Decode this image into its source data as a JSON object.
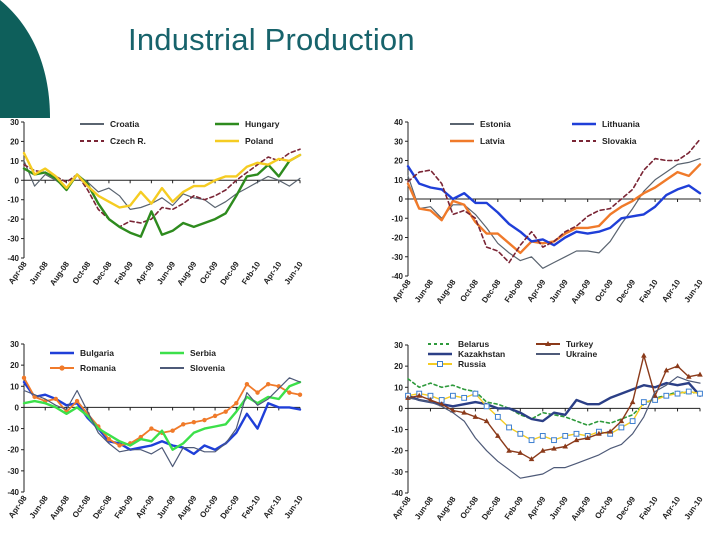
{
  "page": {
    "title": "Industrial Production"
  },
  "colors": {
    "title": "#17636b",
    "corner": "#0e5f5b"
  },
  "chart_data": [
    {
      "type": "line",
      "months": [
        "Apr-08",
        "May-08",
        "Jun-08",
        "Jul-08",
        "Aug-08",
        "Sep-08",
        "Oct-08",
        "Nov-08",
        "Dec-08",
        "Jan-09",
        "Feb-09",
        "Mar-09",
        "Apr-09",
        "May-09",
        "Jun-09",
        "Jul-09",
        "Aug-09",
        "Sep-09",
        "Oct-09",
        "Nov-09",
        "Dec-09",
        "Jan-10",
        "Feb-10",
        "Mar-10",
        "Apr-10",
        "May-10",
        "Jun-10"
      ],
      "tick_labels": [
        "Apr-08",
        "Jun-08",
        "Aug-08",
        "Oct-08",
        "Dec-08",
        "Feb-09",
        "Apr-09",
        "Jun-09",
        "Aug-09",
        "Oct-09",
        "Dec-09",
        "Feb-10",
        "Apr-10",
        "Jun-10"
      ],
      "ylim": [
        -40,
        30
      ],
      "yticks": [
        30,
        20,
        10,
        0,
        -10,
        -20,
        -30,
        -40
      ],
      "series": [
        {
          "name": "Croatia",
          "color": "#5a6470",
          "width": 1.2,
          "dash": "",
          "marker": "",
          "values": [
            10,
            -3,
            3,
            0,
            -4,
            3,
            -1,
            -6,
            -4,
            -8,
            -15,
            -14,
            -12,
            -9,
            -13,
            -7,
            -9,
            -10,
            -14,
            -11,
            -7,
            -4,
            -1,
            2,
            0,
            -3,
            1
          ]
        },
        {
          "name": "Czech R.",
          "color": "#7a2535",
          "width": 1.6,
          "dash": "4 3",
          "marker": "",
          "values": [
            8,
            5,
            4,
            2,
            -1,
            3,
            -5,
            -15,
            -20,
            -24,
            -21,
            -22,
            -20,
            -14,
            -15,
            -12,
            -8,
            -10,
            -8,
            -5,
            0,
            4,
            8,
            12,
            10,
            14,
            16
          ]
        },
        {
          "name": "Hungary",
          "color": "#2e8b1e",
          "width": 2.4,
          "dash": "",
          "marker": "",
          "values": [
            6,
            3,
            4,
            1,
            -5,
            3,
            -2,
            -12,
            -20,
            -24,
            -27,
            -29,
            -16,
            -28,
            -26,
            -22,
            -24,
            -22,
            -20,
            -17,
            -8,
            2,
            3,
            8,
            2,
            10,
            13
          ]
        },
        {
          "name": "Poland",
          "color": "#f5cc22",
          "width": 2.4,
          "dash": "",
          "marker": "",
          "values": [
            14,
            3,
            6,
            2,
            -4,
            3,
            -3,
            -8,
            -11,
            -14,
            -13,
            -6,
            -12,
            -4,
            -11,
            -6,
            -3,
            -3,
            0,
            2,
            2,
            7,
            9,
            8,
            11,
            10,
            13
          ]
        }
      ]
    },
    {
      "type": "line",
      "months": [
        "Apr-08",
        "May-08",
        "Jun-08",
        "Jul-08",
        "Aug-08",
        "Sep-08",
        "Oct-08",
        "Nov-08",
        "Dec-08",
        "Jan-09",
        "Feb-09",
        "Mar-09",
        "Apr-09",
        "May-09",
        "Jun-09",
        "Jul-09",
        "Aug-09",
        "Sep-09",
        "Oct-09",
        "Nov-09",
        "Dec-09",
        "Jan-10",
        "Feb-10",
        "Mar-10",
        "Apr-10",
        "May-10",
        "Jun-10"
      ],
      "tick_labels": [
        "Apr-08",
        "Jun-08",
        "Aug-08",
        "Oct-08",
        "Dec-08",
        "Feb-09",
        "Apr-09",
        "Jun-09",
        "Aug-09",
        "Oct-09",
        "Dec-09",
        "Feb-10",
        "Apr-10",
        "Jun-10"
      ],
      "ylim": [
        -40,
        40
      ],
      "yticks": [
        40,
        30,
        20,
        10,
        0,
        -10,
        -20,
        -30,
        -40
      ],
      "series": [
        {
          "name": "Estonia",
          "color": "#5a6470",
          "width": 1.2,
          "dash": "",
          "marker": "",
          "values": [
            12,
            -5,
            -4,
            -10,
            -3,
            -3,
            -8,
            -15,
            -23,
            -28,
            -32,
            -30,
            -36,
            -33,
            -30,
            -27,
            -27,
            -28,
            -22,
            -13,
            -5,
            4,
            10,
            14,
            18,
            19,
            21
          ]
        },
        {
          "name": "Latvia",
          "color": "#f07a2a",
          "width": 2.4,
          "dash": "",
          "marker": "",
          "values": [
            8,
            -5,
            -6,
            -11,
            -1,
            -3,
            -12,
            -18,
            -18,
            -23,
            -28,
            -22,
            -23,
            -22,
            -18,
            -15,
            -15,
            -14,
            -8,
            -4,
            -1,
            3,
            6,
            10,
            14,
            12,
            18
          ]
        },
        {
          "name": "Lithuania",
          "color": "#1f3fd8",
          "width": 2.4,
          "dash": "",
          "marker": "",
          "values": [
            17,
            8,
            6,
            5,
            0,
            3,
            -2,
            -2,
            -7,
            -13,
            -17,
            -22,
            -21,
            -24,
            -20,
            -17,
            -18,
            -17,
            -15,
            -10,
            -9,
            -8,
            -4,
            2,
            5,
            7,
            3
          ]
        },
        {
          "name": "Slovakia",
          "color": "#7a2535",
          "width": 1.6,
          "dash": "4 3",
          "marker": "",
          "values": [
            9,
            14,
            15,
            8,
            -8,
            -6,
            -10,
            -25,
            -27,
            -33,
            -24,
            -17,
            -25,
            -22,
            -17,
            -14,
            -9,
            -6,
            -5,
            0,
            5,
            15,
            21,
            20,
            20,
            24,
            31
          ]
        }
      ]
    },
    {
      "type": "line",
      "months": [
        "Apr-08",
        "May-08",
        "Jun-08",
        "Jul-08",
        "Aug-08",
        "Sep-08",
        "Oct-08",
        "Nov-08",
        "Dec-08",
        "Jan-09",
        "Feb-09",
        "Mar-09",
        "Apr-09",
        "May-09",
        "Jun-09",
        "Jul-09",
        "Aug-09",
        "Sep-09",
        "Oct-09",
        "Nov-09",
        "Dec-09",
        "Jan-10",
        "Feb-10",
        "Mar-10",
        "Apr-10",
        "May-10",
        "Jun-10"
      ],
      "tick_labels": [
        "Apr-08",
        "Jun-08",
        "Aug-08",
        "Oct-08",
        "Dec-08",
        "Feb-09",
        "Apr-09",
        "Jun-09",
        "Aug-09",
        "Oct-09",
        "Dec-09",
        "Feb-10",
        "Apr-10",
        "Jun-10"
      ],
      "ylim": [
        -40,
        30
      ],
      "yticks": [
        30,
        20,
        10,
        0,
        -10,
        -20,
        -30,
        -40
      ],
      "series": [
        {
          "name": "Bulgaria",
          "color": "#1f3fd8",
          "width": 2.4,
          "dash": "",
          "marker": "",
          "values": [
            12,
            5,
            6,
            4,
            1,
            2,
            -5,
            -10,
            -16,
            -17,
            -20,
            -19,
            -18,
            -16,
            -18,
            -19,
            -22,
            -18,
            -20,
            -17,
            -12,
            -3,
            -10,
            2,
            0,
            0,
            -1
          ]
        },
        {
          "name": "Romania",
          "color": "#f07a2a",
          "width": 1.8,
          "dash": "",
          "marker": "dot",
          "values": [
            14,
            5,
            3,
            4,
            -2,
            3,
            -3,
            -9,
            -15,
            -18,
            -17,
            -14,
            -10,
            -12,
            -11,
            -8,
            -7,
            -6,
            -4,
            -2,
            2,
            11,
            7,
            11,
            10,
            7,
            6
          ]
        },
        {
          "name": "Serbia",
          "color": "#3ce04a",
          "width": 2.4,
          "dash": "",
          "marker": "",
          "values": [
            2,
            3,
            2,
            0,
            -3,
            0,
            -4,
            -10,
            -13,
            -16,
            -18,
            -15,
            -16,
            -11,
            -20,
            -17,
            -12,
            -10,
            -9,
            -8,
            -2,
            5,
            2,
            5,
            4,
            10,
            12
          ]
        },
        {
          "name": "Slovenia",
          "color": "#4e5a78",
          "width": 1.2,
          "dash": "",
          "marker": "",
          "values": [
            8,
            6,
            4,
            1,
            -1,
            8,
            -2,
            -12,
            -17,
            -21,
            -20,
            -20,
            -22,
            -19,
            -28,
            -19,
            -19,
            -21,
            -21,
            -17,
            -10,
            7,
            1,
            4,
            9,
            14,
            12
          ]
        }
      ]
    },
    {
      "type": "line",
      "months": [
        "Apr-08",
        "May-08",
        "Jun-08",
        "Jul-08",
        "Aug-08",
        "Sep-08",
        "Oct-08",
        "Nov-08",
        "Dec-08",
        "Jan-09",
        "Feb-09",
        "Mar-09",
        "Apr-09",
        "May-09",
        "Jun-09",
        "Jul-09",
        "Aug-09",
        "Sep-09",
        "Oct-09",
        "Nov-09",
        "Dec-09",
        "Jan-10",
        "Feb-10",
        "Mar-10",
        "Apr-10",
        "May-10",
        "Jun-10"
      ],
      "tick_labels": [
        "Apr-08",
        "Jun-08",
        "Aug-08",
        "Oct-08",
        "Dec-08",
        "Feb-09",
        "Apr-09",
        "Jun-09",
        "Aug-09",
        "Oct-09",
        "Dec-09",
        "Feb-10",
        "Apr-10",
        "Jun-10"
      ],
      "ylim": [
        -40,
        30
      ],
      "yticks": [
        30,
        20,
        10,
        0,
        -10,
        -20,
        -30,
        -40
      ],
      "series": [
        {
          "name": "Belarus",
          "color": "#2e9a3c",
          "width": 1.6,
          "dash": "3 3",
          "marker": "",
          "values": [
            14,
            10,
            12,
            10,
            11,
            9,
            8,
            3,
            2,
            0,
            -3,
            -5,
            -2,
            -3,
            -4,
            -6,
            -8,
            -6,
            -7,
            -5,
            -3,
            2,
            5,
            6,
            8,
            7,
            8
          ]
        },
        {
          "name": "Kazakhstan",
          "color": "#2b3f86",
          "width": 2.4,
          "dash": "",
          "marker": "",
          "values": [
            6,
            4,
            3,
            2,
            1,
            2,
            3,
            2,
            0,
            0,
            -2,
            -5,
            -6,
            -2,
            -3,
            4,
            2,
            2,
            5,
            7,
            9,
            11,
            10,
            12,
            11,
            12,
            6
          ]
        },
        {
          "name": "Russia",
          "color": "#f5cc22",
          "width": 1.4,
          "dash": "",
          "marker": "square",
          "values": [
            6,
            7,
            6,
            4,
            6,
            5,
            7,
            1,
            -4,
            -9,
            -12,
            -15,
            -13,
            -15,
            -13,
            -12,
            -13,
            -11,
            -12,
            -9,
            -6,
            3,
            4,
            6,
            7,
            8,
            7
          ]
        },
        {
          "name": "Turkey",
          "color": "#8b3a1a",
          "width": 1.4,
          "dash": "",
          "marker": "triangle",
          "values": [
            5,
            6,
            4,
            2,
            -1,
            -2,
            -4,
            -6,
            -13,
            -20,
            -21,
            -24,
            -20,
            -19,
            -18,
            -15,
            -14,
            -12,
            -11,
            -6,
            3,
            25,
            6,
            18,
            20,
            15,
            16
          ]
        },
        {
          "name": "Ukraine",
          "color": "#4e5a78",
          "width": 1.2,
          "dash": "",
          "marker": "",
          "values": [
            5,
            4,
            3,
            1,
            -2,
            -6,
            -14,
            -20,
            -25,
            -29,
            -33,
            -32,
            -31,
            -28,
            -28,
            -26,
            -24,
            -22,
            -19,
            -17,
            -12,
            -4,
            8,
            11,
            15,
            13,
            12
          ]
        }
      ]
    }
  ]
}
